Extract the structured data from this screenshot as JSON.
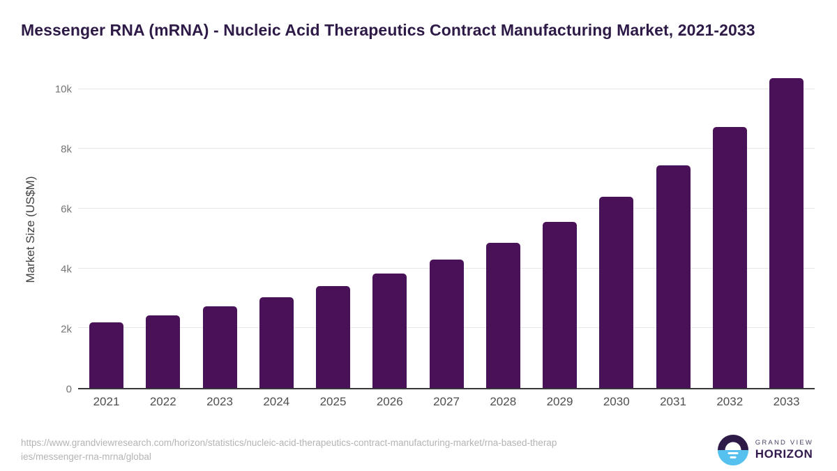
{
  "chart_data": {
    "type": "bar",
    "title": "Messenger RNA (mRNA) - Nucleic Acid Therapeutics Contract Manufacturing Market, 2021-2033",
    "categories": [
      "2021",
      "2022",
      "2023",
      "2024",
      "2025",
      "2026",
      "2027",
      "2028",
      "2029",
      "2030",
      "2031",
      "2032",
      "2033"
    ],
    "values": [
      2200,
      2420,
      2730,
      3040,
      3410,
      3830,
      4300,
      4855,
      5555,
      6390,
      7440,
      8745,
      10370
    ],
    "xlabel": "",
    "ylabel": "Market Size (US$M)",
    "ylim": [
      0,
      10650
    ],
    "yticks": [
      {
        "value": 0,
        "label": "0"
      },
      {
        "value": 2000,
        "label": "2k"
      },
      {
        "value": 4000,
        "label": "4k"
      },
      {
        "value": 6000,
        "label": "6k"
      },
      {
        "value": 8000,
        "label": "8k"
      },
      {
        "value": 10000,
        "label": "10k"
      }
    ],
    "grid": true,
    "legend": false,
    "bar_color": "#491157"
  },
  "footer": {
    "source_lines": [
      "https://www.grandviewresearch.com/horizon/statistics/nucleic-acid-therapeutics-contract-manufacturing-market/rna-based-therap",
      "ies/messenger-rna-mrna/global"
    ],
    "logo": {
      "line1": "GRAND VIEW",
      "line2": "HORIZON",
      "mark_top_color": "#2e1a47",
      "mark_bottom_color": "#56c1ef"
    }
  }
}
